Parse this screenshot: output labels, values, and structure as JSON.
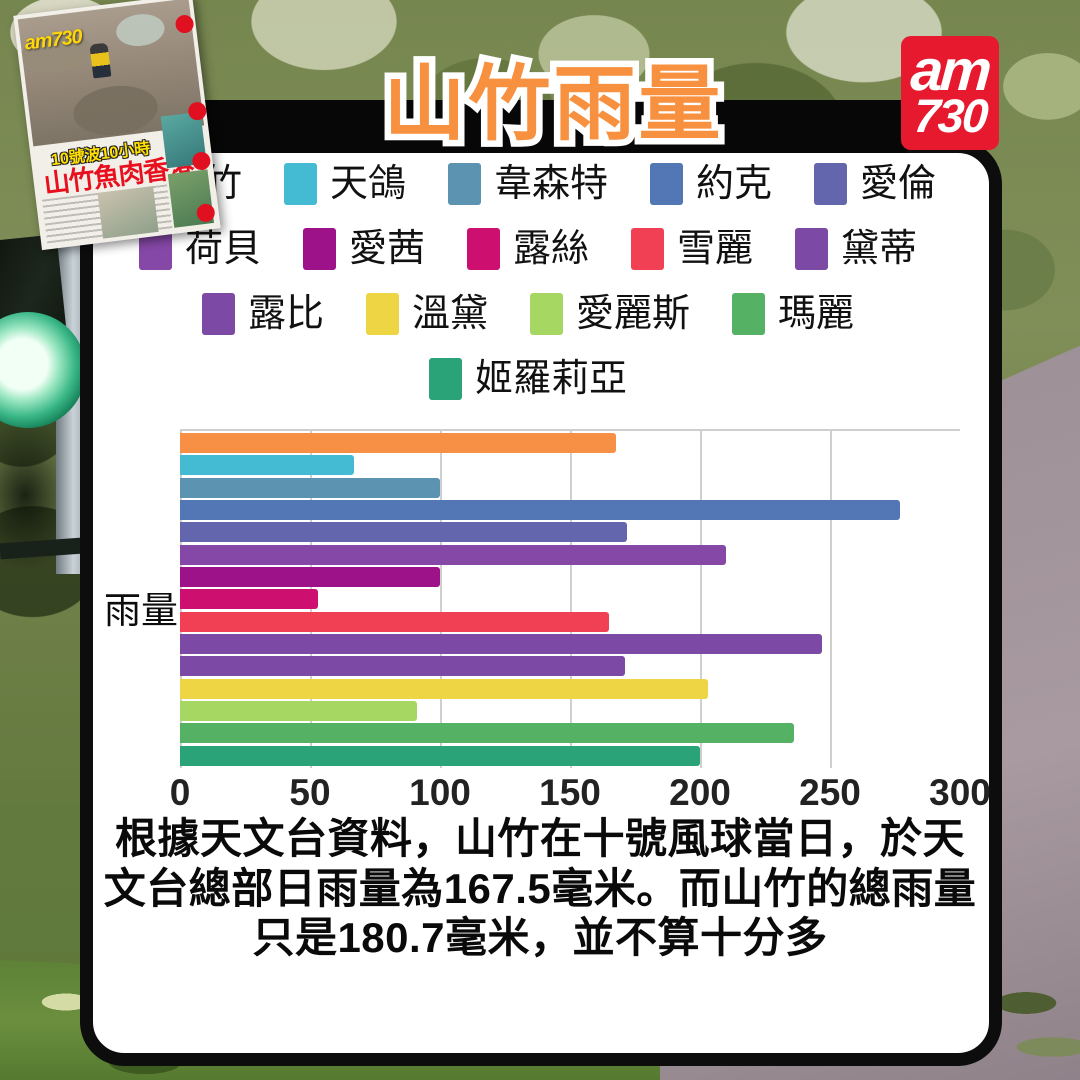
{
  "title": "山竹雨量",
  "logo": {
    "line1": "am",
    "line2": "730"
  },
  "newspaper": {
    "masthead": "am730",
    "kicker": "10號波10小時",
    "headline": "山竹魚肉香港"
  },
  "legend_rows": [
    5,
    5,
    4,
    1
  ],
  "chart_data": {
    "type": "bar",
    "orientation": "horizontal",
    "title": "山竹雨量",
    "ylabel": "雨量",
    "xlabel": "",
    "xlim": [
      0,
      300
    ],
    "xticks": [
      0,
      50,
      100,
      150,
      200,
      250,
      300
    ],
    "grid": "vertical",
    "legend_position": "top",
    "series": [
      {
        "name": "山竹",
        "value": 167.5,
        "color": "#F79045"
      },
      {
        "name": "天鴿",
        "value": 67,
        "color": "#44BBD3"
      },
      {
        "name": "韋森特",
        "value": 100,
        "color": "#5B93B1"
      },
      {
        "name": "約克",
        "value": 277,
        "color": "#5376B4"
      },
      {
        "name": "愛倫",
        "value": 172,
        "color": "#6365AD"
      },
      {
        "name": "荷貝",
        "value": 210,
        "color": "#8548A6"
      },
      {
        "name": "愛茜",
        "value": 100,
        "color": "#9D1189"
      },
      {
        "name": "露絲",
        "value": 53,
        "color": "#CD1070"
      },
      {
        "name": "雪麗",
        "value": 165,
        "color": "#F14053"
      },
      {
        "name": "黛蒂",
        "value": 247,
        "color": "#7C4AA4"
      },
      {
        "name": "露比",
        "value": 171,
        "color": "#7C4AA4"
      },
      {
        "name": "溫黛",
        "value": 203,
        "color": "#EDD544"
      },
      {
        "name": "愛麗斯",
        "value": 91,
        "color": "#A7D763"
      },
      {
        "name": "瑪麗",
        "value": 236,
        "color": "#55B163"
      },
      {
        "name": "姬羅莉亞",
        "value": 200,
        "color": "#2AA379"
      }
    ]
  },
  "caption": "根據天文台資料，山竹在十號風球當日，於天文台總部日雨量為167.5毫米。而山竹的總雨量只是180.7毫米，並不算十分多"
}
